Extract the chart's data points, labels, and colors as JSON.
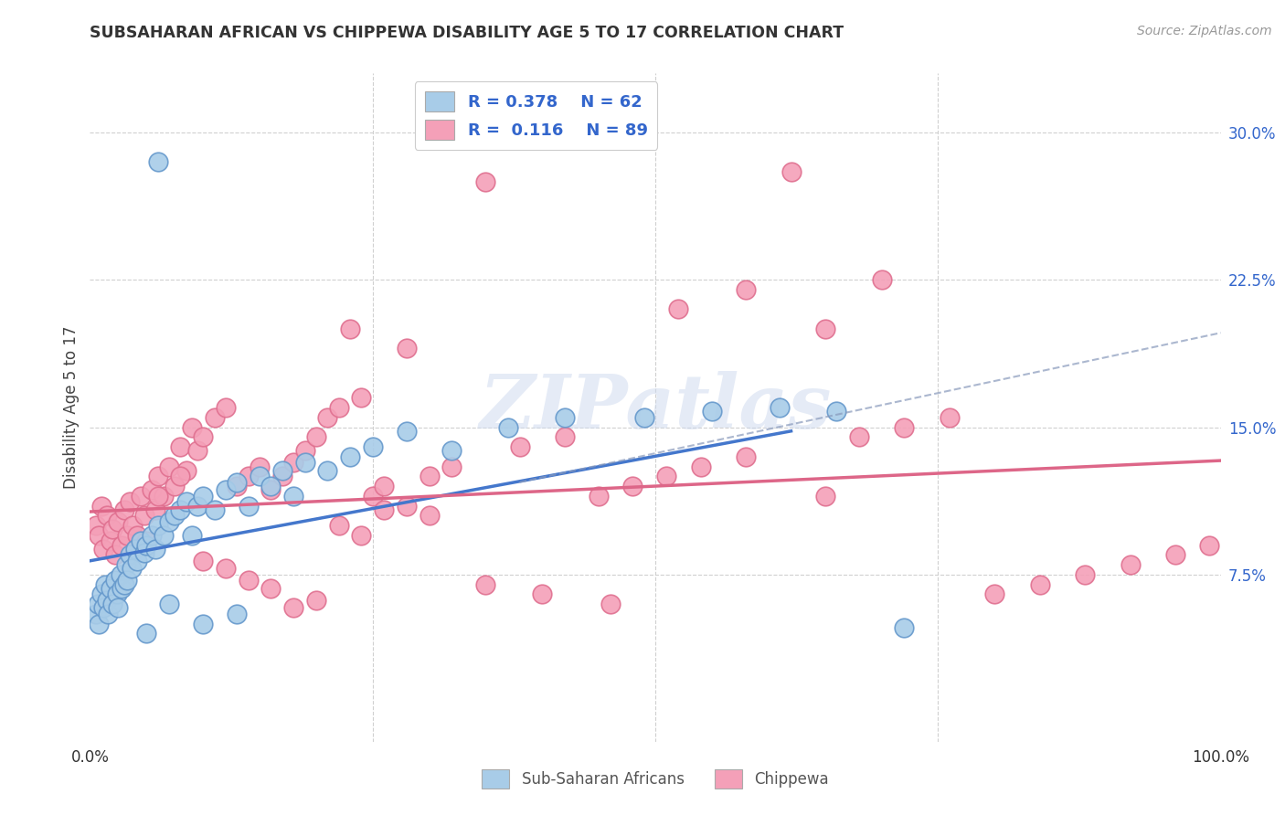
{
  "title": "SUBSAHARAN AFRICAN VS CHIPPEWA DISABILITY AGE 5 TO 17 CORRELATION CHART",
  "source": "Source: ZipAtlas.com",
  "ylabel": "Disability Age 5 to 17",
  "ytick_vals": [
    0.0,
    0.075,
    0.15,
    0.225,
    0.3
  ],
  "ytick_labels": [
    "",
    "7.5%",
    "15.0%",
    "22.5%",
    "30.0%"
  ],
  "xlim": [
    0.0,
    1.0
  ],
  "ylim": [
    -0.01,
    0.33
  ],
  "color_blue": "#a8cce8",
  "color_pink": "#f4a0b8",
  "color_blue_edge": "#6699cc",
  "color_pink_edge": "#e07090",
  "trend_blue": [
    0.0,
    0.082,
    0.62,
    0.148
  ],
  "trend_pink": [
    0.0,
    0.107,
    1.0,
    0.133
  ],
  "trend_dash": [
    0.38,
    0.122,
    1.0,
    0.198
  ],
  "blue_scatter_x": [
    0.005,
    0.007,
    0.008,
    0.01,
    0.012,
    0.013,
    0.015,
    0.016,
    0.018,
    0.02,
    0.022,
    0.024,
    0.025,
    0.027,
    0.028,
    0.03,
    0.032,
    0.033,
    0.035,
    0.037,
    0.04,
    0.042,
    0.045,
    0.048,
    0.05,
    0.055,
    0.058,
    0.06,
    0.065,
    0.07,
    0.075,
    0.08,
    0.085,
    0.09,
    0.095,
    0.1,
    0.11,
    0.12,
    0.13,
    0.14,
    0.15,
    0.16,
    0.17,
    0.18,
    0.19,
    0.21,
    0.23,
    0.25,
    0.28,
    0.32,
    0.37,
    0.42,
    0.49,
    0.55,
    0.61,
    0.66,
    0.72,
    0.13,
    0.1,
    0.07,
    0.06,
    0.05
  ],
  "blue_scatter_y": [
    0.055,
    0.06,
    0.05,
    0.065,
    0.058,
    0.07,
    0.062,
    0.055,
    0.068,
    0.06,
    0.072,
    0.065,
    0.058,
    0.075,
    0.068,
    0.07,
    0.08,
    0.072,
    0.085,
    0.078,
    0.088,
    0.082,
    0.092,
    0.086,
    0.09,
    0.095,
    0.088,
    0.1,
    0.095,
    0.102,
    0.105,
    0.108,
    0.112,
    0.095,
    0.11,
    0.115,
    0.108,
    0.118,
    0.122,
    0.11,
    0.125,
    0.12,
    0.128,
    0.115,
    0.132,
    0.128,
    0.135,
    0.14,
    0.148,
    0.138,
    0.15,
    0.155,
    0.155,
    0.158,
    0.16,
    0.158,
    0.048,
    0.055,
    0.05,
    0.06,
    0.285,
    0.045
  ],
  "pink_scatter_x": [
    0.005,
    0.008,
    0.01,
    0.012,
    0.015,
    0.018,
    0.02,
    0.022,
    0.025,
    0.028,
    0.03,
    0.033,
    0.035,
    0.038,
    0.04,
    0.042,
    0.045,
    0.048,
    0.05,
    0.055,
    0.058,
    0.06,
    0.065,
    0.07,
    0.075,
    0.08,
    0.085,
    0.09,
    0.095,
    0.1,
    0.11,
    0.12,
    0.13,
    0.14,
    0.15,
    0.16,
    0.17,
    0.18,
    0.19,
    0.2,
    0.21,
    0.22,
    0.23,
    0.24,
    0.25,
    0.26,
    0.28,
    0.3,
    0.32,
    0.35,
    0.38,
    0.42,
    0.45,
    0.48,
    0.51,
    0.54,
    0.58,
    0.62,
    0.65,
    0.68,
    0.72,
    0.76,
    0.8,
    0.84,
    0.88,
    0.92,
    0.96,
    0.99,
    0.65,
    0.7,
    0.58,
    0.52,
    0.46,
    0.4,
    0.35,
    0.3,
    0.28,
    0.26,
    0.24,
    0.22,
    0.2,
    0.18,
    0.16,
    0.14,
    0.12,
    0.1,
    0.08,
    0.06
  ],
  "pink_scatter_y": [
    0.1,
    0.095,
    0.11,
    0.088,
    0.105,
    0.092,
    0.098,
    0.085,
    0.102,
    0.09,
    0.108,
    0.095,
    0.112,
    0.1,
    0.088,
    0.095,
    0.115,
    0.105,
    0.092,
    0.118,
    0.108,
    0.125,
    0.115,
    0.13,
    0.12,
    0.14,
    0.128,
    0.15,
    0.138,
    0.145,
    0.155,
    0.16,
    0.12,
    0.125,
    0.13,
    0.118,
    0.125,
    0.132,
    0.138,
    0.145,
    0.155,
    0.16,
    0.2,
    0.165,
    0.115,
    0.12,
    0.19,
    0.125,
    0.13,
    0.275,
    0.14,
    0.145,
    0.115,
    0.12,
    0.125,
    0.13,
    0.135,
    0.28,
    0.2,
    0.145,
    0.15,
    0.155,
    0.065,
    0.07,
    0.075,
    0.08,
    0.085,
    0.09,
    0.115,
    0.225,
    0.22,
    0.21,
    0.06,
    0.065,
    0.07,
    0.105,
    0.11,
    0.108,
    0.095,
    0.1,
    0.062,
    0.058,
    0.068,
    0.072,
    0.078,
    0.082,
    0.125,
    0.115
  ],
  "watermark": "ZIPatlas",
  "bg_color": "#ffffff",
  "grid_color": "#d0d0d0",
  "legend_text_color": "#3366cc",
  "ytick_color": "#3366cc",
  "source_color": "#999999"
}
